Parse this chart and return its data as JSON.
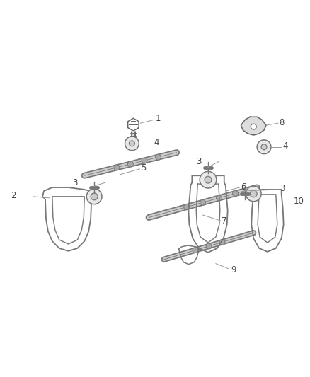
{
  "background_color": "#ffffff",
  "line_color": "#666666",
  "label_color": "#555555",
  "fig_width": 4.38,
  "fig_height": 5.33,
  "dpi": 100
}
